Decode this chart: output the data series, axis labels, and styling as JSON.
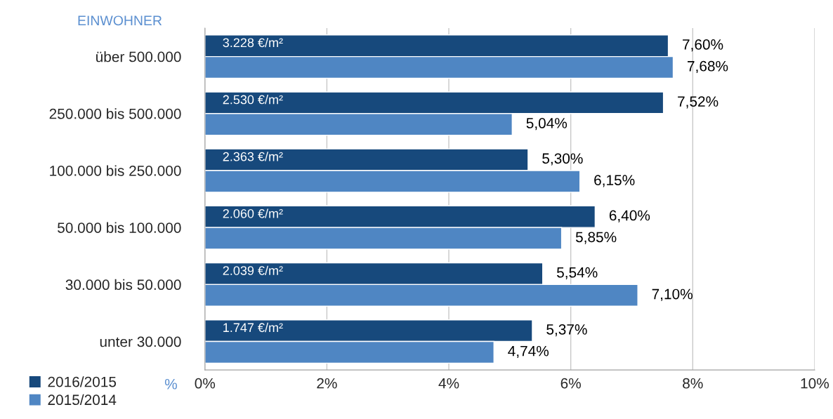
{
  "chart_data": {
    "type": "bar",
    "orientation": "horizontal",
    "categories": [
      "über 500.000",
      "250.000 bis 500.000",
      "100.000 bis 250.000",
      "50.000 bis 100.000",
      "30.000 bis 50.000",
      "unter 30.000"
    ],
    "series": [
      {
        "name": "2016/2015",
        "color": "#17497c",
        "values": [
          7.6,
          7.52,
          5.3,
          6.4,
          5.54,
          5.37
        ],
        "value_labels": [
          "7,60%",
          "7,52%",
          "5,30%",
          "6,40%",
          "5,54%",
          "5,37%"
        ]
      },
      {
        "name": "2015/2014",
        "color": "#4f86c3",
        "values": [
          7.68,
          5.04,
          6.15,
          5.85,
          7.1,
          4.74
        ],
        "value_labels": [
          "7,68%",
          "5,04%",
          "6,15%",
          "5,85%",
          "7,10%",
          "4,74%"
        ]
      }
    ],
    "ylabel": "EINWOHNER",
    "xlabel": "%",
    "xlim": [
      0,
      10
    ],
    "xticks": [
      {
        "value": 0,
        "label": "0%"
      },
      {
        "value": 2,
        "label": "2%"
      },
      {
        "value": 4,
        "label": "4%"
      },
      {
        "value": 6,
        "label": "6%"
      },
      {
        "value": 8,
        "label": "8%"
      },
      {
        "value": 10,
        "label": "10%"
      }
    ],
    "annotations": [
      {
        "text": "3.228 €/m²",
        "y": "über 500.000"
      },
      {
        "text": "2.530 €/m²",
        "y": "250.000 bis 500.000"
      },
      {
        "text": "2.363 €/m²",
        "y": "100.000 bis 250.000"
      },
      {
        "text": "2.060 €/m²",
        "y": "50.000 bis 100.000"
      },
      {
        "text": "2.039 €/m²",
        "y": "30.000 bis 50.000"
      },
      {
        "text": "1.747 €/m²",
        "y": "unter 30.000"
      }
    ],
    "grid": "x",
    "legend": "bottom left"
  }
}
